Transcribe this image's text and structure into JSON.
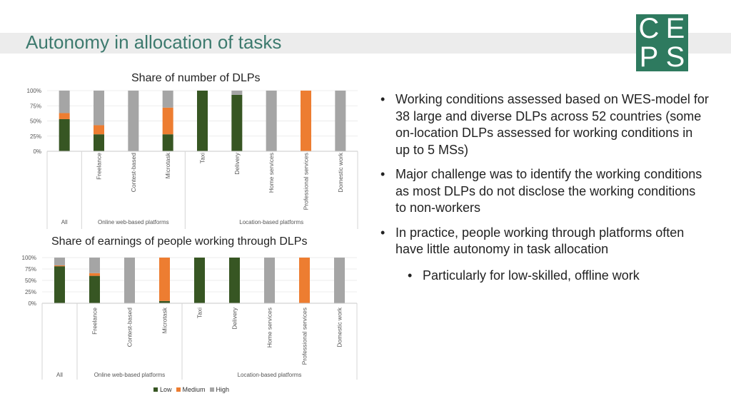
{
  "slide": {
    "title": "Autonomy in allocation of tasks",
    "logo": [
      "C",
      "E",
      "P",
      "S"
    ]
  },
  "bullets": [
    {
      "text": "Working conditions assessed based on WES-model for 38 large and diverse DLPs across 52 countries (some on-location DLPs assessed for working conditions in up to 5 MSs)",
      "level": 1
    },
    {
      "text": "Major challenge was to identify the working conditions as most DLPs do not disclose the working conditions to non-workers",
      "level": 1
    },
    {
      "text": "In practice, people working through platforms often have little autonomy in task allocation",
      "level": 1
    },
    {
      "text": "Particularly for low-skilled, offline work",
      "level": 2
    }
  ],
  "colors": {
    "Low": "#375623",
    "Medium": "#ed7d31",
    "High": "#a5a5a5"
  },
  "chart_data": [
    {
      "type": "bar",
      "stacked": true,
      "title": "Share of number of DLPs",
      "categories": [
        "",
        "Freelance",
        "Contest-based",
        "Microtask",
        "Taxi",
        "Delivery",
        "Home services",
        "Professional services",
        "Domestic work"
      ],
      "groups": [
        {
          "label": "All",
          "categories": [
            ""
          ]
        },
        {
          "label": "Online web-based platforms",
          "categories": [
            "Freelance",
            "Contest-based",
            "Microtask"
          ]
        },
        {
          "label": "Location-based platforms",
          "categories": [
            "Taxi",
            "Delivery",
            "Home services",
            "Professional services",
            "Domestic work"
          ]
        }
      ],
      "series": [
        {
          "name": "Low",
          "values": [
            53,
            28,
            0,
            28,
            100,
            93,
            0,
            0,
            0
          ]
        },
        {
          "name": "Medium",
          "values": [
            10,
            15,
            0,
            44,
            0,
            0,
            0,
            100,
            0
          ]
        },
        {
          "name": "High",
          "values": [
            37,
            57,
            100,
            28,
            0,
            7,
            100,
            0,
            100
          ]
        }
      ],
      "yticks": [
        "100%",
        "75%",
        "50%",
        "25%",
        "0%"
      ],
      "ylim": [
        0,
        100
      ]
    },
    {
      "type": "bar",
      "stacked": true,
      "title": "Share of earnings of people working through DLPs",
      "categories": [
        "",
        "Freelance",
        "Contest-based",
        "Microtask",
        "Taxi",
        "Delivery",
        "Home services",
        "Professional services",
        "Domestic work"
      ],
      "groups": [
        {
          "label": "All",
          "categories": [
            ""
          ]
        },
        {
          "label": "Online web-based platforms",
          "categories": [
            "Freelance",
            "Contest-based",
            "Microtask"
          ]
        },
        {
          "label": "Location-based platforms",
          "categories": [
            "Taxi",
            "Delivery",
            "Home services",
            "Professional services",
            "Domestic work"
          ]
        }
      ],
      "series": [
        {
          "name": "Low",
          "values": [
            81,
            60,
            0,
            5,
            100,
            100,
            0,
            0,
            0
          ]
        },
        {
          "name": "Medium",
          "values": [
            2,
            6,
            0,
            95,
            0,
            0,
            0,
            100,
            0
          ]
        },
        {
          "name": "High",
          "values": [
            17,
            34,
            100,
            0,
            0,
            0,
            100,
            0,
            100
          ]
        }
      ],
      "yticks": [
        "100%",
        "75%",
        "50%",
        "25%",
        "0%"
      ],
      "ylim": [
        0,
        100
      ]
    }
  ],
  "legend": [
    {
      "label": "Low",
      "color": "#375623"
    },
    {
      "label": "Medium",
      "color": "#ed7d31"
    },
    {
      "label": "High",
      "color": "#a5a5a5"
    }
  ]
}
